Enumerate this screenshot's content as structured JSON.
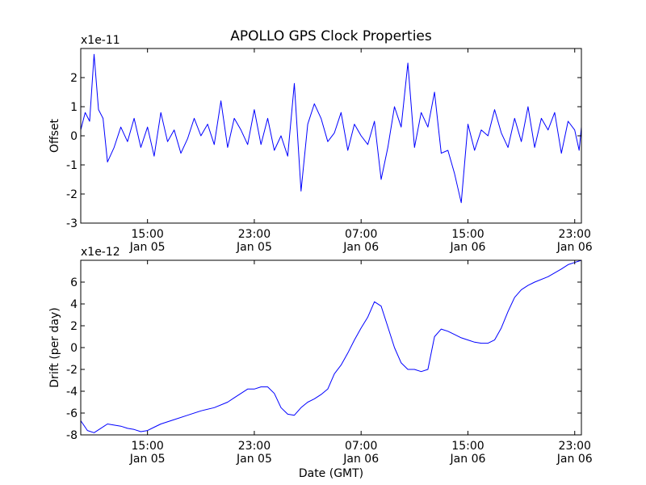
{
  "chart_data": {
    "title": "APOLLO GPS Clock Properties",
    "xlabel": "Date (GMT)",
    "x_ticks": [
      {
        "time": "15:00",
        "date": "Jan 05",
        "t": "2010-01-05T15:00"
      },
      {
        "time": "23:00",
        "date": "Jan 05",
        "t": "2010-01-05T23:00"
      },
      {
        "time": "07:00",
        "date": "Jan 06",
        "t": "2010-01-06T07:00"
      },
      {
        "time": "15:00",
        "date": "Jan 06",
        "t": "2010-01-06T15:00"
      },
      {
        "time": "23:00",
        "date": "Jan 06",
        "t": "2010-01-06T23:00"
      }
    ],
    "xlim": [
      "2010-01-05T10:00",
      "2010-01-06T23:30"
    ],
    "panels": [
      {
        "type": "line",
        "ylabel": "Offset",
        "y_multiplier": "x1e-11",
        "ylim": [
          -3,
          3
        ],
        "yticks": [
          "-3",
          "-2",
          "-1",
          "0",
          "1",
          "2"
        ],
        "color": "#0000ff",
        "series": {
          "t": [
            "2010-01-05T10:00",
            "2010-01-05T10:20",
            "2010-01-05T10:40",
            "2010-01-05T11:00",
            "2010-01-05T11:20",
            "2010-01-05T11:40",
            "2010-01-05T12:00",
            "2010-01-05T12:30",
            "2010-01-05T13:00",
            "2010-01-05T13:30",
            "2010-01-05T14:00",
            "2010-01-05T14:30",
            "2010-01-05T15:00",
            "2010-01-05T15:30",
            "2010-01-05T16:00",
            "2010-01-05T16:30",
            "2010-01-05T17:00",
            "2010-01-05T17:30",
            "2010-01-05T18:00",
            "2010-01-05T18:30",
            "2010-01-05T19:00",
            "2010-01-05T19:30",
            "2010-01-05T20:00",
            "2010-01-05T20:30",
            "2010-01-05T21:00",
            "2010-01-05T21:30",
            "2010-01-05T22:00",
            "2010-01-05T22:30",
            "2010-01-05T23:00",
            "2010-01-05T23:30",
            "2010-01-06T00:00",
            "2010-01-06T00:30",
            "2010-01-06T01:00",
            "2010-01-06T01:30",
            "2010-01-06T02:00",
            "2010-01-06T02:30",
            "2010-01-06T03:00",
            "2010-01-06T03:30",
            "2010-01-06T04:00",
            "2010-01-06T04:30",
            "2010-01-06T05:00",
            "2010-01-06T05:30",
            "2010-01-06T06:00",
            "2010-01-06T06:30",
            "2010-01-06T07:00",
            "2010-01-06T07:30",
            "2010-01-06T08:00",
            "2010-01-06T08:30",
            "2010-01-06T09:00",
            "2010-01-06T09:30",
            "2010-01-06T10:00",
            "2010-01-06T10:30",
            "2010-01-06T11:00",
            "2010-01-06T11:30",
            "2010-01-06T12:00",
            "2010-01-06T12:30",
            "2010-01-06T13:00",
            "2010-01-06T13:30",
            "2010-01-06T14:00",
            "2010-01-06T14:30",
            "2010-01-06T15:00",
            "2010-01-06T15:30",
            "2010-01-06T16:00",
            "2010-01-06T16:30",
            "2010-01-06T17:00",
            "2010-01-06T17:30",
            "2010-01-06T18:00",
            "2010-01-06T18:30",
            "2010-01-06T19:00",
            "2010-01-06T19:30",
            "2010-01-06T20:00",
            "2010-01-06T20:30",
            "2010-01-06T21:00",
            "2010-01-06T21:30",
            "2010-01-06T22:00",
            "2010-01-06T22:30",
            "2010-01-06T23:00",
            "2010-01-06T23:20",
            "2010-01-06T23:30"
          ],
          "y": [
            0.2,
            0.8,
            0.5,
            2.8,
            0.9,
            0.6,
            -0.9,
            -0.4,
            0.3,
            -0.2,
            0.6,
            -0.4,
            0.3,
            -0.7,
            0.8,
            -0.2,
            0.2,
            -0.6,
            -0.1,
            0.6,
            0.0,
            0.4,
            -0.3,
            1.2,
            -0.4,
            0.6,
            0.2,
            -0.3,
            0.9,
            -0.3,
            0.6,
            -0.5,
            0.0,
            -0.7,
            1.8,
            -1.9,
            0.4,
            1.1,
            0.6,
            -0.2,
            0.1,
            0.8,
            -0.5,
            0.4,
            0.0,
            -0.3,
            0.5,
            -1.5,
            -0.4,
            1.0,
            0.3,
            2.5,
            -0.4,
            0.8,
            0.3,
            1.5,
            -0.6,
            -0.5,
            -1.3,
            -2.3,
            0.4,
            -0.5,
            0.2,
            0.0,
            0.9,
            0.1,
            -0.4,
            0.6,
            -0.2,
            1.0,
            -0.4,
            0.6,
            0.2,
            0.8,
            -0.6,
            0.5,
            0.2,
            -0.5,
            0.3
          ]
        }
      },
      {
        "type": "line",
        "ylabel": "Drift (per day)",
        "y_multiplier": "x1e-12",
        "ylim": [
          -8,
          8
        ],
        "yticks": [
          "-8",
          "-6",
          "-4",
          "-2",
          "0",
          "2",
          "4",
          "6"
        ],
        "color": "#0000ff",
        "series": {
          "t": [
            "2010-01-05T10:00",
            "2010-01-05T10:30",
            "2010-01-05T11:00",
            "2010-01-05T11:30",
            "2010-01-05T12:00",
            "2010-01-05T12:30",
            "2010-01-05T13:00",
            "2010-01-05T13:30",
            "2010-01-05T14:00",
            "2010-01-05T14:30",
            "2010-01-05T15:00",
            "2010-01-05T15:30",
            "2010-01-05T16:00",
            "2010-01-05T17:00",
            "2010-01-05T18:00",
            "2010-01-05T19:00",
            "2010-01-05T20:00",
            "2010-01-05T21:00",
            "2010-01-05T21:30",
            "2010-01-05T22:00",
            "2010-01-05T22:30",
            "2010-01-05T23:00",
            "2010-01-05T23:30",
            "2010-01-06T00:00",
            "2010-01-06T00:30",
            "2010-01-06T01:00",
            "2010-01-06T01:30",
            "2010-01-06T02:00",
            "2010-01-06T02:30",
            "2010-01-06T03:00",
            "2010-01-06T03:30",
            "2010-01-06T04:00",
            "2010-01-06T04:30",
            "2010-01-06T05:00",
            "2010-01-06T05:30",
            "2010-01-06T06:00",
            "2010-01-06T06:30",
            "2010-01-06T07:00",
            "2010-01-06T07:30",
            "2010-01-06T08:00",
            "2010-01-06T08:30",
            "2010-01-06T09:00",
            "2010-01-06T09:30",
            "2010-01-06T10:00",
            "2010-01-06T10:30",
            "2010-01-06T11:00",
            "2010-01-06T11:30",
            "2010-01-06T12:00",
            "2010-01-06T12:30",
            "2010-01-06T13:00",
            "2010-01-06T13:30",
            "2010-01-06T14:00",
            "2010-01-06T14:30",
            "2010-01-06T15:00",
            "2010-01-06T15:30",
            "2010-01-06T16:00",
            "2010-01-06T16:30",
            "2010-01-06T17:00",
            "2010-01-06T17:30",
            "2010-01-06T18:00",
            "2010-01-06T18:30",
            "2010-01-06T19:00",
            "2010-01-06T19:30",
            "2010-01-06T20:00",
            "2010-01-06T21:00",
            "2010-01-06T22:00",
            "2010-01-06T22:30",
            "2010-01-06T23:00",
            "2010-01-06T23:30"
          ],
          "y": [
            -6.7,
            -7.6,
            -7.8,
            -7.4,
            -7.0,
            -7.1,
            -7.2,
            -7.4,
            -7.5,
            -7.7,
            -7.6,
            -7.3,
            -7.0,
            -6.6,
            -6.2,
            -5.8,
            -5.5,
            -5.0,
            -4.6,
            -4.2,
            -3.8,
            -3.8,
            -3.6,
            -3.6,
            -4.2,
            -5.5,
            -6.1,
            -6.2,
            -5.5,
            -5.0,
            -4.7,
            -4.3,
            -3.8,
            -2.4,
            -1.6,
            -0.5,
            0.7,
            1.8,
            2.8,
            4.2,
            3.8,
            1.9,
            0.0,
            -1.4,
            -2.0,
            -2.0,
            -2.2,
            -2.0,
            1.0,
            1.7,
            1.5,
            1.2,
            0.9,
            0.7,
            0.5,
            0.4,
            0.4,
            0.7,
            1.8,
            3.3,
            4.6,
            5.3,
            5.7,
            6.0,
            6.5,
            7.2,
            7.6,
            7.8,
            8.0
          ]
        }
      }
    ]
  }
}
